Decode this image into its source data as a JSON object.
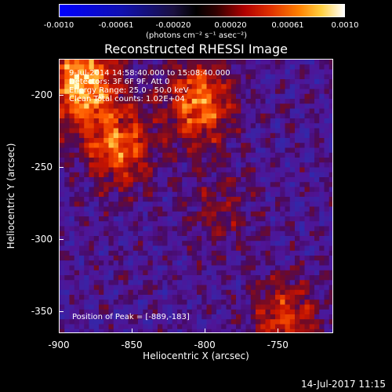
{
  "colorbar": {
    "ticks": [
      "-0.0010",
      "-0.00061",
      "-0.00020",
      "0.00020",
      "0.00061",
      "0.0010"
    ],
    "unit_label": "(photons cm⁻² s⁻¹ asec⁻²)",
    "range": [
      -0.001,
      0.001
    ]
  },
  "annotations": {
    "time_range": "9-Jul-2014 14:58:40.000 to 15:08:40.000",
    "detectors": "Detectors: 3F 6F 9F, Att 0",
    "energy": "Energy Range: 25.0 - 50.0 keV",
    "method": "Clean     Total counts: 1.02E+04",
    "peak": "Position of Peak = [-889,-183]"
  },
  "timestamp": "14-Jul-2017 11:15",
  "colors": {
    "background": "#000000",
    "foreground": "#ffffff",
    "negative_low": "#0020c0",
    "zero": "#200030",
    "positive_mid": "#c02000",
    "positive_high": "#ffffb0"
  },
  "chart_data": {
    "type": "heatmap",
    "title": "Reconstructed RHESSI Image",
    "xlabel": "Heliocentric X (arcsec)",
    "ylabel": "Heliocentric Y (arcsec)",
    "xlim": [
      -900,
      -712
    ],
    "ylim": [
      -365,
      -175
    ],
    "x_ticks": [
      "-900",
      "-850",
      "-800",
      "-750"
    ],
    "y_ticks": [
      "-200",
      "-250",
      "-300",
      "-350"
    ],
    "colorbar_label": "(photons cm⁻² s⁻¹ asec⁻²)",
    "sources": [
      {
        "x": -885,
        "y": -190,
        "intensity": 1.0
      },
      {
        "x": -860,
        "y": -235,
        "intensity": 0.7
      },
      {
        "x": -805,
        "y": -205,
        "intensity": 0.75
      },
      {
        "x": -790,
        "y": -280,
        "intensity": 0.25
      },
      {
        "x": -745,
        "y": -355,
        "intensity": 0.55
      }
    ]
  }
}
